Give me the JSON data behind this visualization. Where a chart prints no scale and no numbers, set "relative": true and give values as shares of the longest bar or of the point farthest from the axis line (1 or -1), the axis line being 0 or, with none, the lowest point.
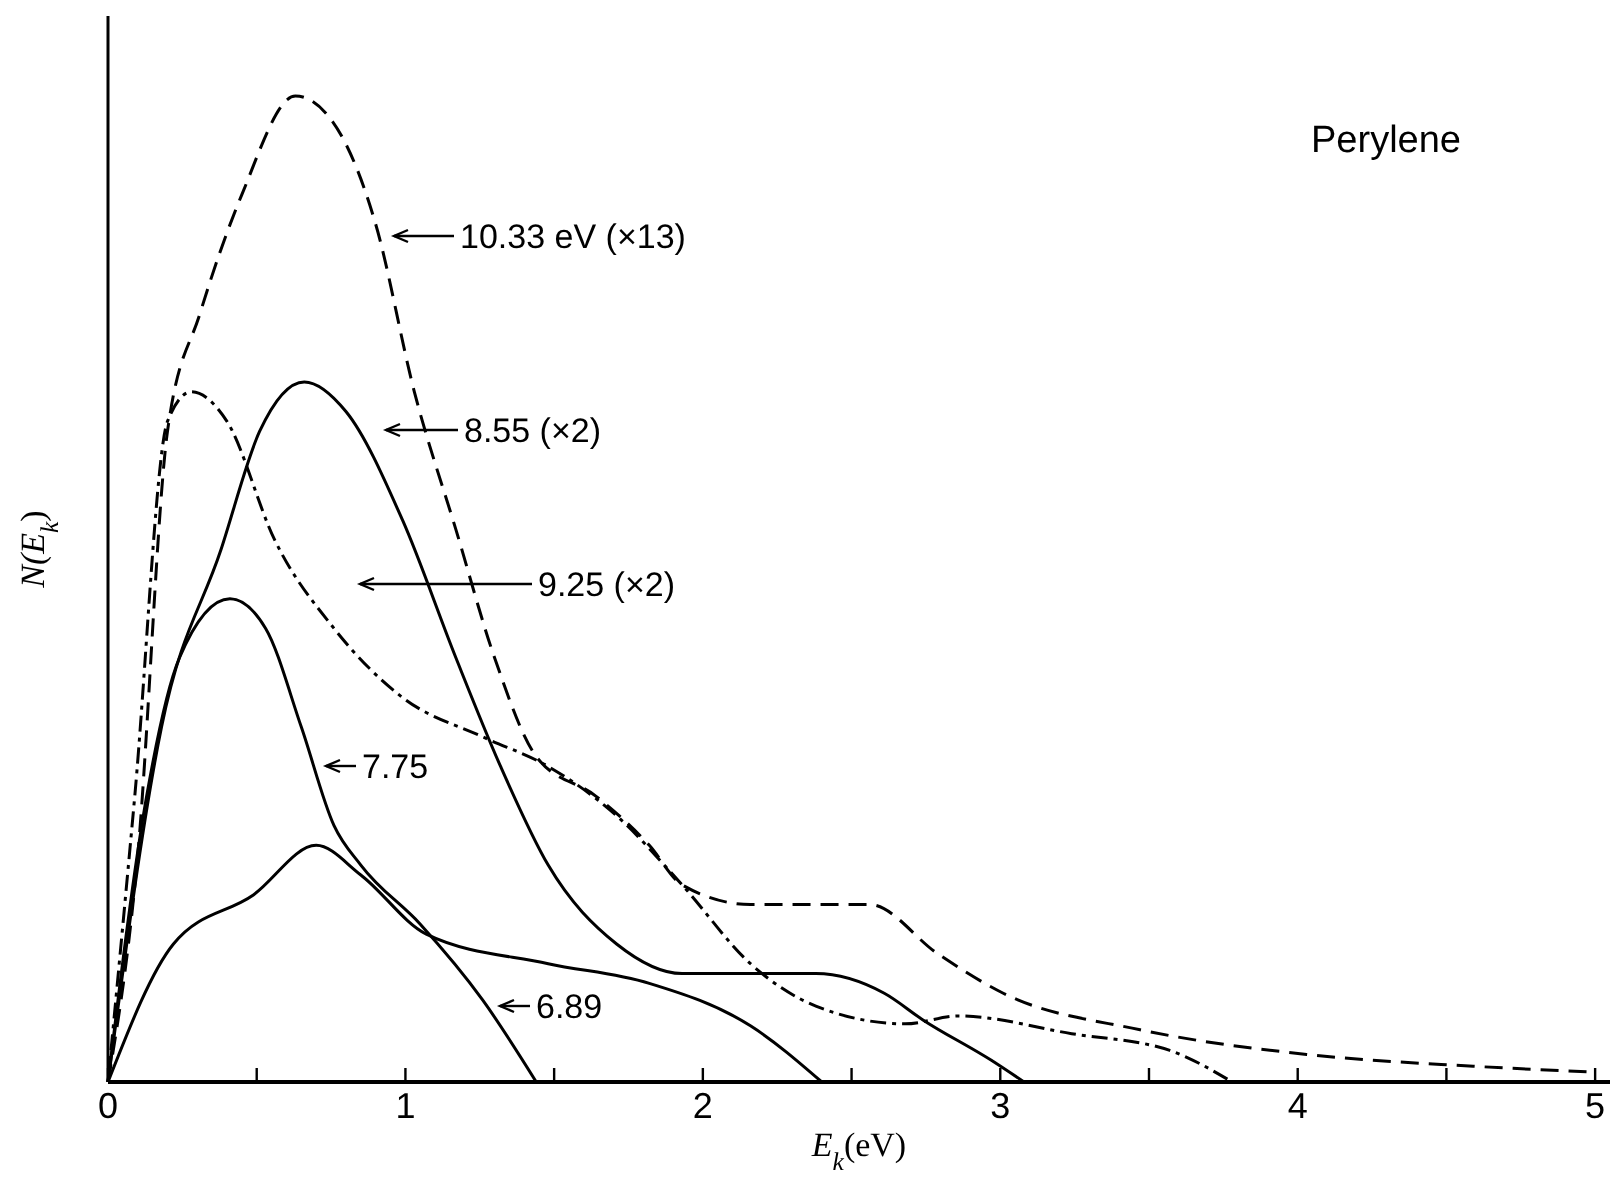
{
  "chart_data": {
    "type": "line",
    "title": "Perylene",
    "xlabel": "E$_{k}$(eV)",
    "ylabel": "N(E$_{k}$)",
    "relative": true,
    "xlim": [
      0,
      5.05
    ],
    "xticks": [
      0,
      {
        "value": 0.5,
        "label": null
      },
      1,
      {
        "value": 1.5,
        "label": null
      },
      2,
      {
        "value": 2.5,
        "label": null
      },
      3,
      {
        "value": 3.5,
        "label": null
      },
      4,
      {
        "value": 4.5,
        "label": null
      },
      5
    ],
    "grid": false,
    "marker": "none",
    "series": [
      {
        "color": "#000000",
        "line_style": "dashed",
        "x": [
          0,
          0.1,
          0.2,
          0.31,
          0.45,
          0.63,
          0.74,
          0.9,
          1.03,
          1.17,
          1.3,
          1.44,
          1.64,
          1.82,
          1.93,
          2.16,
          2.5,
          2.56,
          2.79,
          3.01,
          3.47,
          4.03,
          4.59,
          5.0
        ],
        "values": [
          0,
          0.23,
          0.66,
          0.78,
          0.9,
          1.0,
          0.98,
          0.87,
          0.7,
          0.56,
          0.43,
          0.33,
          0.29,
          0.24,
          0.2,
          0.18,
          0.18,
          0.18,
          0.13,
          0.09,
          0.053,
          0.028,
          0.016,
          0.01
        ]
      },
      {
        "color": "#000000",
        "line_style": "dotted",
        "x": [
          0,
          0.09,
          0.2,
          0.28,
          0.4,
          0.56,
          0.76,
          0.99,
          1.26,
          1.48,
          1.71,
          1.93,
          2.16,
          2.38,
          2.68,
          2.86,
          3.24,
          3.57,
          3.78
        ],
        "values": [
          0,
          0.29,
          0.67,
          0.7,
          0.67,
          0.55,
          0.46,
          0.39,
          0.35,
          0.32,
          0.27,
          0.2,
          0.12,
          0.077,
          0.059,
          0.067,
          0.049,
          0.032,
          0
        ]
      },
      {
        "color": "#000000",
        "line_style": "solid",
        "x": [
          0,
          0.18,
          0.38,
          0.51,
          0.66,
          0.8,
          0.99,
          1.17,
          1.32,
          1.48,
          1.71,
          1.93,
          2.38,
          2.61,
          2.74,
          2.97,
          3.08
        ],
        "values": [
          0,
          0.36,
          0.54,
          0.66,
          0.71,
          0.68,
          0.57,
          0.43,
          0.32,
          0.22,
          0.14,
          0.11,
          0.11,
          0.09,
          0.063,
          0.022,
          0
        ]
      },
      {
        "color": "#000000",
        "line_style": "solid",
        "x": [
          0,
          0.13,
          0.24,
          0.41,
          0.53,
          0.65,
          0.76,
          0.85,
          1.05,
          1.26,
          1.44
        ],
        "values": [
          0,
          0.29,
          0.43,
          0.49,
          0.46,
          0.36,
          0.26,
          0.22,
          0.16,
          0.083,
          0
        ]
      },
      {
        "color": "#000000",
        "line_style": "solid",
        "x": [
          0,
          0.22,
          0.49,
          0.7,
          0.85,
          1.07,
          1.48,
          1.82,
          2.16,
          2.4
        ],
        "values": [
          0,
          0.14,
          0.19,
          0.24,
          0.21,
          0.15,
          0.12,
          0.1,
          0.057,
          0
        ]
      }
    ],
    "annotations": [
      "10.33 eV (×13)",
      "8.55 (×2)",
      "9.25 (×2)",
      "7.75",
      "6.89"
    ]
  }
}
